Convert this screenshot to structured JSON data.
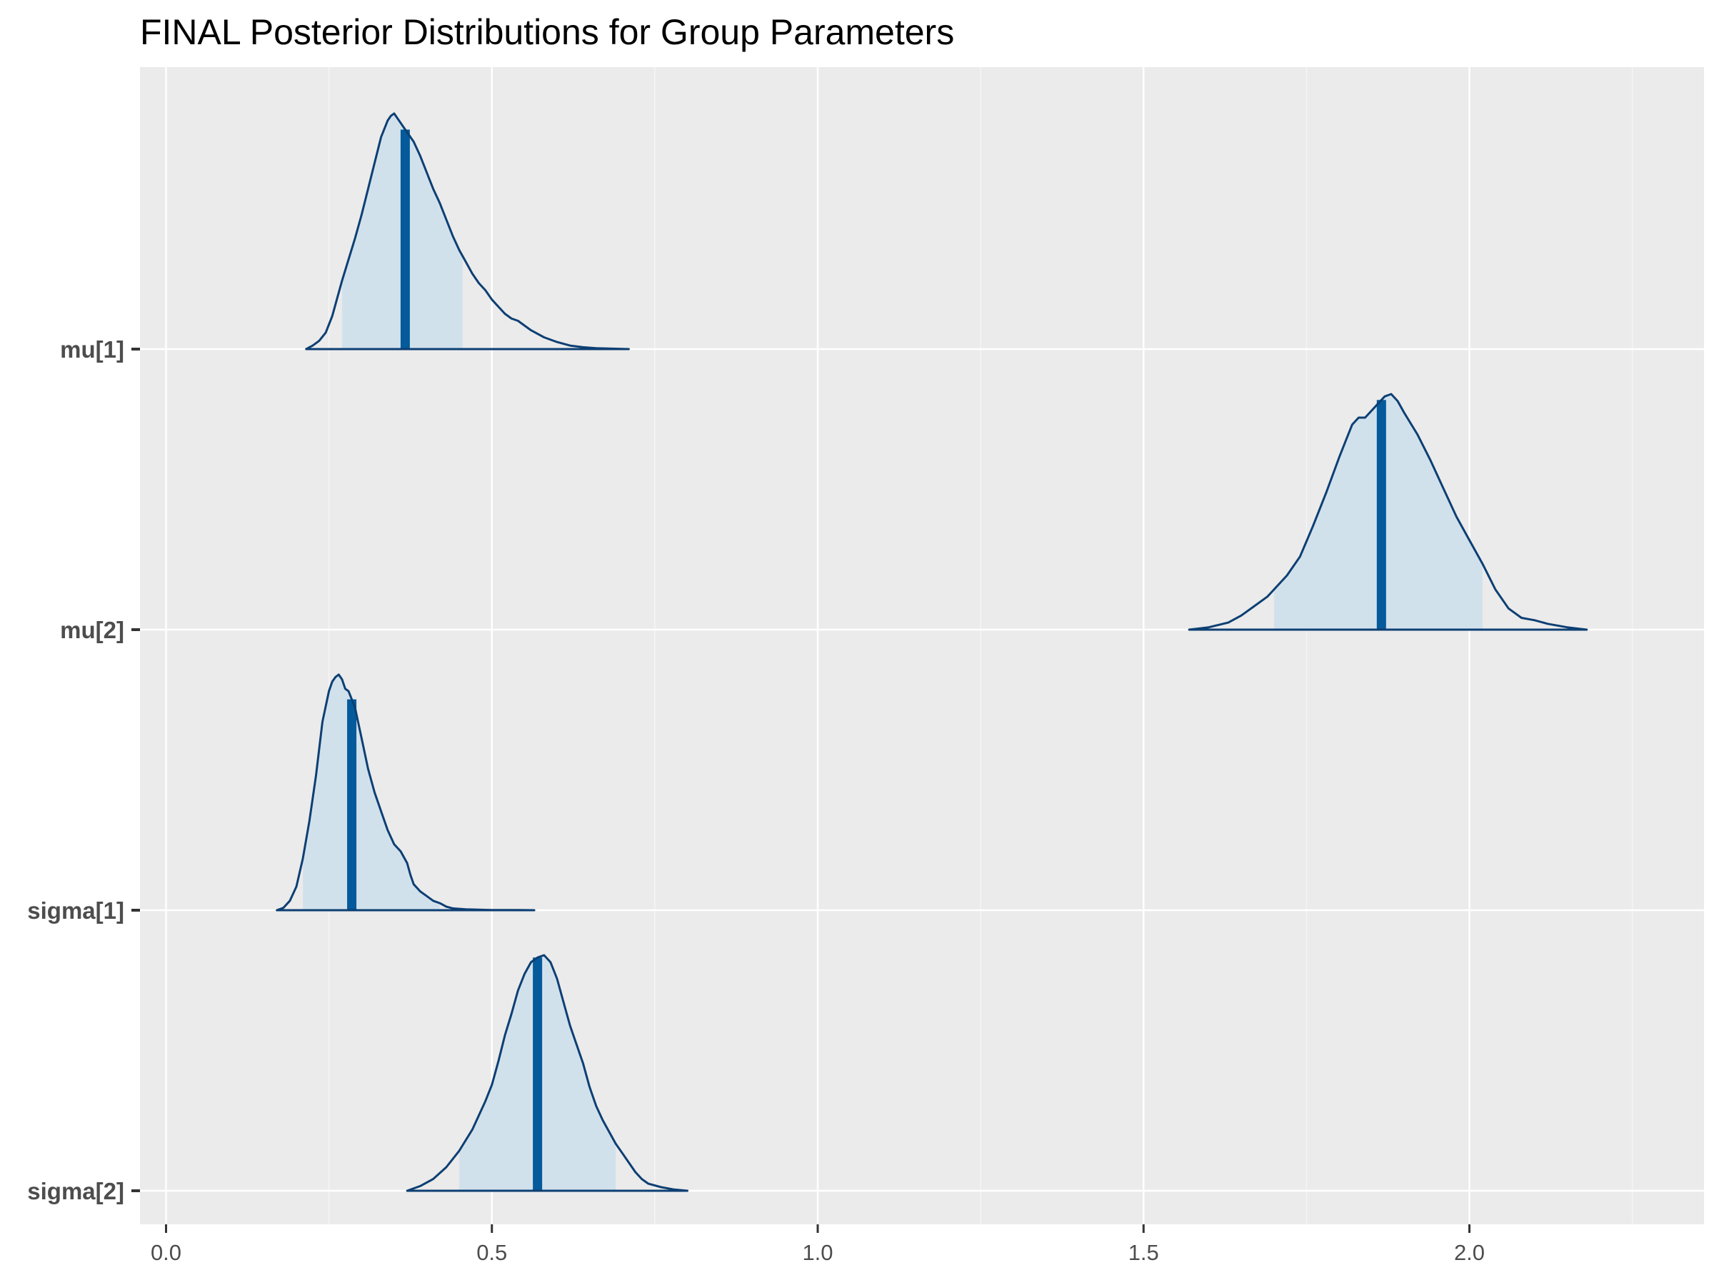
{
  "chart_data": {
    "type": "area",
    "title": "FINAL Posterior Distributions for Group Parameters",
    "xlabel": "",
    "ylabel": "",
    "xlim": [
      -0.04,
      2.36
    ],
    "x_ticks": [
      0.0,
      0.5,
      1.0,
      1.5,
      2.0
    ],
    "x_tick_labels": [
      "0.0",
      "0.5",
      "1.0",
      "1.5",
      "2.0"
    ],
    "grid": true,
    "legend": "none",
    "colors": {
      "panel_background": "#ebebeb",
      "grid_major": "#ffffff",
      "grid_minor": "#f5f5f5",
      "density_outline": "#0d3f73",
      "density_fill": "#d1e1ec",
      "median_line": "#045a9a",
      "tick_text": "#4d4d4d",
      "tick_mark": "#333333",
      "title": "#000000"
    },
    "parameters": [
      {
        "name": "mu[1]",
        "median": 0.367,
        "interval": [
          0.27,
          0.455
        ],
        "density": {
          "x": [
            0.215,
            0.225,
            0.235,
            0.245,
            0.255,
            0.262,
            0.27,
            0.28,
            0.29,
            0.3,
            0.31,
            0.32,
            0.33,
            0.34,
            0.345,
            0.35,
            0.36,
            0.37,
            0.375,
            0.38,
            0.39,
            0.4,
            0.41,
            0.42,
            0.43,
            0.44,
            0.45,
            0.46,
            0.47,
            0.48,
            0.49,
            0.5,
            0.51,
            0.52,
            0.53,
            0.54,
            0.55,
            0.56,
            0.58,
            0.6,
            0.62,
            0.64,
            0.66,
            0.68,
            0.7,
            0.71
          ],
          "y": [
            0.0,
            0.015,
            0.035,
            0.07,
            0.14,
            0.21,
            0.29,
            0.38,
            0.47,
            0.57,
            0.68,
            0.79,
            0.9,
            0.97,
            0.99,
            1.0,
            0.96,
            0.92,
            0.9,
            0.88,
            0.82,
            0.75,
            0.68,
            0.62,
            0.55,
            0.48,
            0.42,
            0.37,
            0.32,
            0.28,
            0.25,
            0.21,
            0.18,
            0.15,
            0.13,
            0.12,
            0.1,
            0.08,
            0.05,
            0.03,
            0.015,
            0.008,
            0.004,
            0.002,
            0.001,
            0.0
          ]
        }
      },
      {
        "name": "mu[2]",
        "median": 1.865,
        "interval": [
          1.7,
          2.02
        ],
        "density": {
          "x": [
            1.57,
            1.6,
            1.63,
            1.65,
            1.67,
            1.69,
            1.7,
            1.72,
            1.74,
            1.76,
            1.78,
            1.8,
            1.81,
            1.82,
            1.83,
            1.84,
            1.85,
            1.86,
            1.87,
            1.88,
            1.89,
            1.9,
            1.92,
            1.94,
            1.96,
            1.98,
            2.0,
            2.02,
            2.04,
            2.06,
            2.08,
            2.1,
            2.12,
            2.15,
            2.18
          ],
          "y": [
            0.0,
            0.01,
            0.03,
            0.06,
            0.1,
            0.14,
            0.17,
            0.23,
            0.31,
            0.44,
            0.58,
            0.73,
            0.8,
            0.87,
            0.9,
            0.9,
            0.93,
            0.96,
            0.99,
            1.0,
            0.97,
            0.92,
            0.83,
            0.72,
            0.6,
            0.48,
            0.38,
            0.28,
            0.17,
            0.09,
            0.05,
            0.04,
            0.025,
            0.01,
            0.0
          ]
        }
      },
      {
        "name": "sigma[1]",
        "median": 0.285,
        "interval": [
          0.21,
          0.42
        ],
        "density": {
          "x": [
            0.17,
            0.18,
            0.19,
            0.2,
            0.21,
            0.22,
            0.23,
            0.24,
            0.25,
            0.255,
            0.26,
            0.265,
            0.27,
            0.275,
            0.28,
            0.29,
            0.3,
            0.31,
            0.32,
            0.33,
            0.34,
            0.35,
            0.36,
            0.37,
            0.375,
            0.38,
            0.39,
            0.4,
            0.41,
            0.42,
            0.43,
            0.44,
            0.46,
            0.48,
            0.5,
            0.52,
            0.54,
            0.565
          ],
          "y": [
            0.0,
            0.01,
            0.04,
            0.1,
            0.22,
            0.38,
            0.57,
            0.8,
            0.93,
            0.97,
            0.99,
            1.0,
            0.98,
            0.94,
            0.93,
            0.86,
            0.73,
            0.6,
            0.5,
            0.42,
            0.34,
            0.28,
            0.25,
            0.2,
            0.15,
            0.11,
            0.08,
            0.06,
            0.04,
            0.03,
            0.015,
            0.008,
            0.004,
            0.002,
            0.001,
            0.001,
            0.0005,
            0.0
          ]
        }
      },
      {
        "name": "sigma[2]",
        "median": 0.57,
        "interval": [
          0.45,
          0.69
        ],
        "density": {
          "x": [
            0.37,
            0.39,
            0.41,
            0.43,
            0.45,
            0.47,
            0.49,
            0.5,
            0.51,
            0.52,
            0.53,
            0.54,
            0.55,
            0.56,
            0.57,
            0.58,
            0.59,
            0.6,
            0.61,
            0.62,
            0.63,
            0.64,
            0.65,
            0.66,
            0.67,
            0.68,
            0.69,
            0.7,
            0.71,
            0.72,
            0.73,
            0.74,
            0.76,
            0.78,
            0.8
          ],
          "y": [
            0.0,
            0.02,
            0.05,
            0.1,
            0.17,
            0.26,
            0.38,
            0.45,
            0.55,
            0.66,
            0.75,
            0.85,
            0.92,
            0.97,
            0.99,
            1.0,
            0.97,
            0.9,
            0.8,
            0.7,
            0.62,
            0.54,
            0.44,
            0.36,
            0.3,
            0.25,
            0.2,
            0.16,
            0.12,
            0.08,
            0.05,
            0.03,
            0.015,
            0.005,
            0.0
          ]
        }
      }
    ]
  }
}
